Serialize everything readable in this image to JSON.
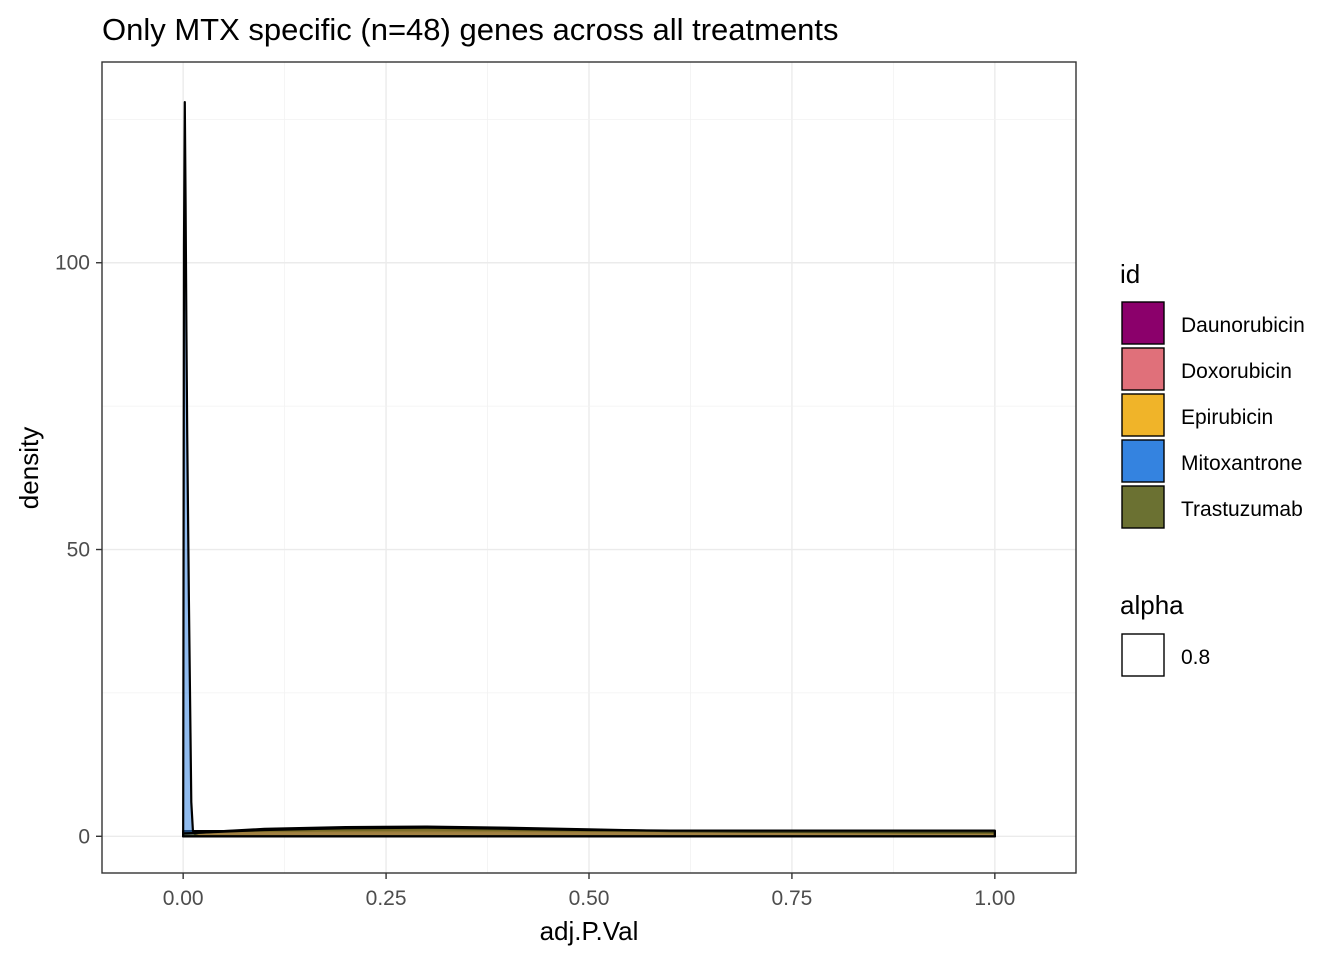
{
  "chart_data": {
    "type": "area",
    "title": "Only MTX specific (n=48) genes across all treatments",
    "xlabel": "adj.P.Val",
    "ylabel": "density",
    "xlim": [
      -0.1,
      1.1
    ],
    "ylim": [
      -6.4,
      135
    ],
    "x_ticks": [
      0,
      0.25,
      0.5,
      0.75,
      1
    ],
    "x_tick_labels": [
      "0.00",
      "0.25",
      "0.50",
      "0.75",
      "1.00"
    ],
    "y_ticks": [
      0,
      50,
      100
    ],
    "y_tick_labels": [
      "0",
      "50",
      "100"
    ],
    "grid": true,
    "legend_position": "right",
    "legend": {
      "fill_title": "id",
      "alpha_title": "alpha",
      "alpha_value": "0.8"
    },
    "series": [
      {
        "name": "Daunorubicin",
        "color": "#8B006B",
        "x": [
          0.0,
          0.05,
          0.1,
          0.2,
          0.3,
          0.4,
          0.5,
          0.6,
          0.7,
          0.8,
          0.9,
          1.0
        ],
        "values": [
          0.9,
          0.9,
          0.9,
          0.9,
          0.9,
          0.9,
          0.9,
          0.9,
          0.9,
          0.9,
          0.9,
          0.9
        ]
      },
      {
        "name": "Doxorubicin",
        "color": "#E0707A",
        "x": [
          0.0,
          0.05,
          0.1,
          0.2,
          0.3,
          0.4,
          0.5,
          0.6,
          0.7,
          0.8,
          0.9,
          1.0
        ],
        "values": [
          0.6,
          0.9,
          1.0,
          1.1,
          1.2,
          1.1,
          1.0,
          0.9,
          0.8,
          0.7,
          0.6,
          0.6
        ]
      },
      {
        "name": "Epirubicin",
        "color": "#F0B429",
        "x": [
          0.0,
          0.05,
          0.1,
          0.2,
          0.3,
          0.4,
          0.5,
          0.6,
          0.7,
          0.8,
          0.9,
          1.0
        ],
        "values": [
          0.4,
          0.9,
          1.3,
          1.6,
          1.7,
          1.5,
          1.2,
          0.9,
          0.8,
          0.8,
          0.8,
          0.8
        ]
      },
      {
        "name": "Mitoxantrone",
        "color": "#3483E0",
        "x": [
          0.0,
          0.001,
          0.002,
          0.003,
          0.004,
          0.005,
          0.006,
          0.007,
          0.008,
          0.009,
          0.01,
          0.012,
          0.015,
          0.02,
          1.0
        ],
        "values": [
          0.5,
          103,
          128,
          110,
          88,
          70,
          56,
          42,
          30,
          18,
          6,
          1.0,
          0.2,
          0.0,
          0.0
        ]
      },
      {
        "name": "Trastuzumab",
        "color": "#6B7132",
        "x": [
          0.0,
          0.05,
          0.1,
          0.2,
          0.3,
          0.4,
          0.5,
          0.6,
          0.7,
          0.8,
          0.9,
          1.0
        ],
        "values": [
          0.5,
          0.8,
          1.1,
          1.4,
          1.5,
          1.3,
          1.1,
          1.0,
          1.0,
          1.0,
          1.0,
          1.0
        ]
      }
    ]
  }
}
